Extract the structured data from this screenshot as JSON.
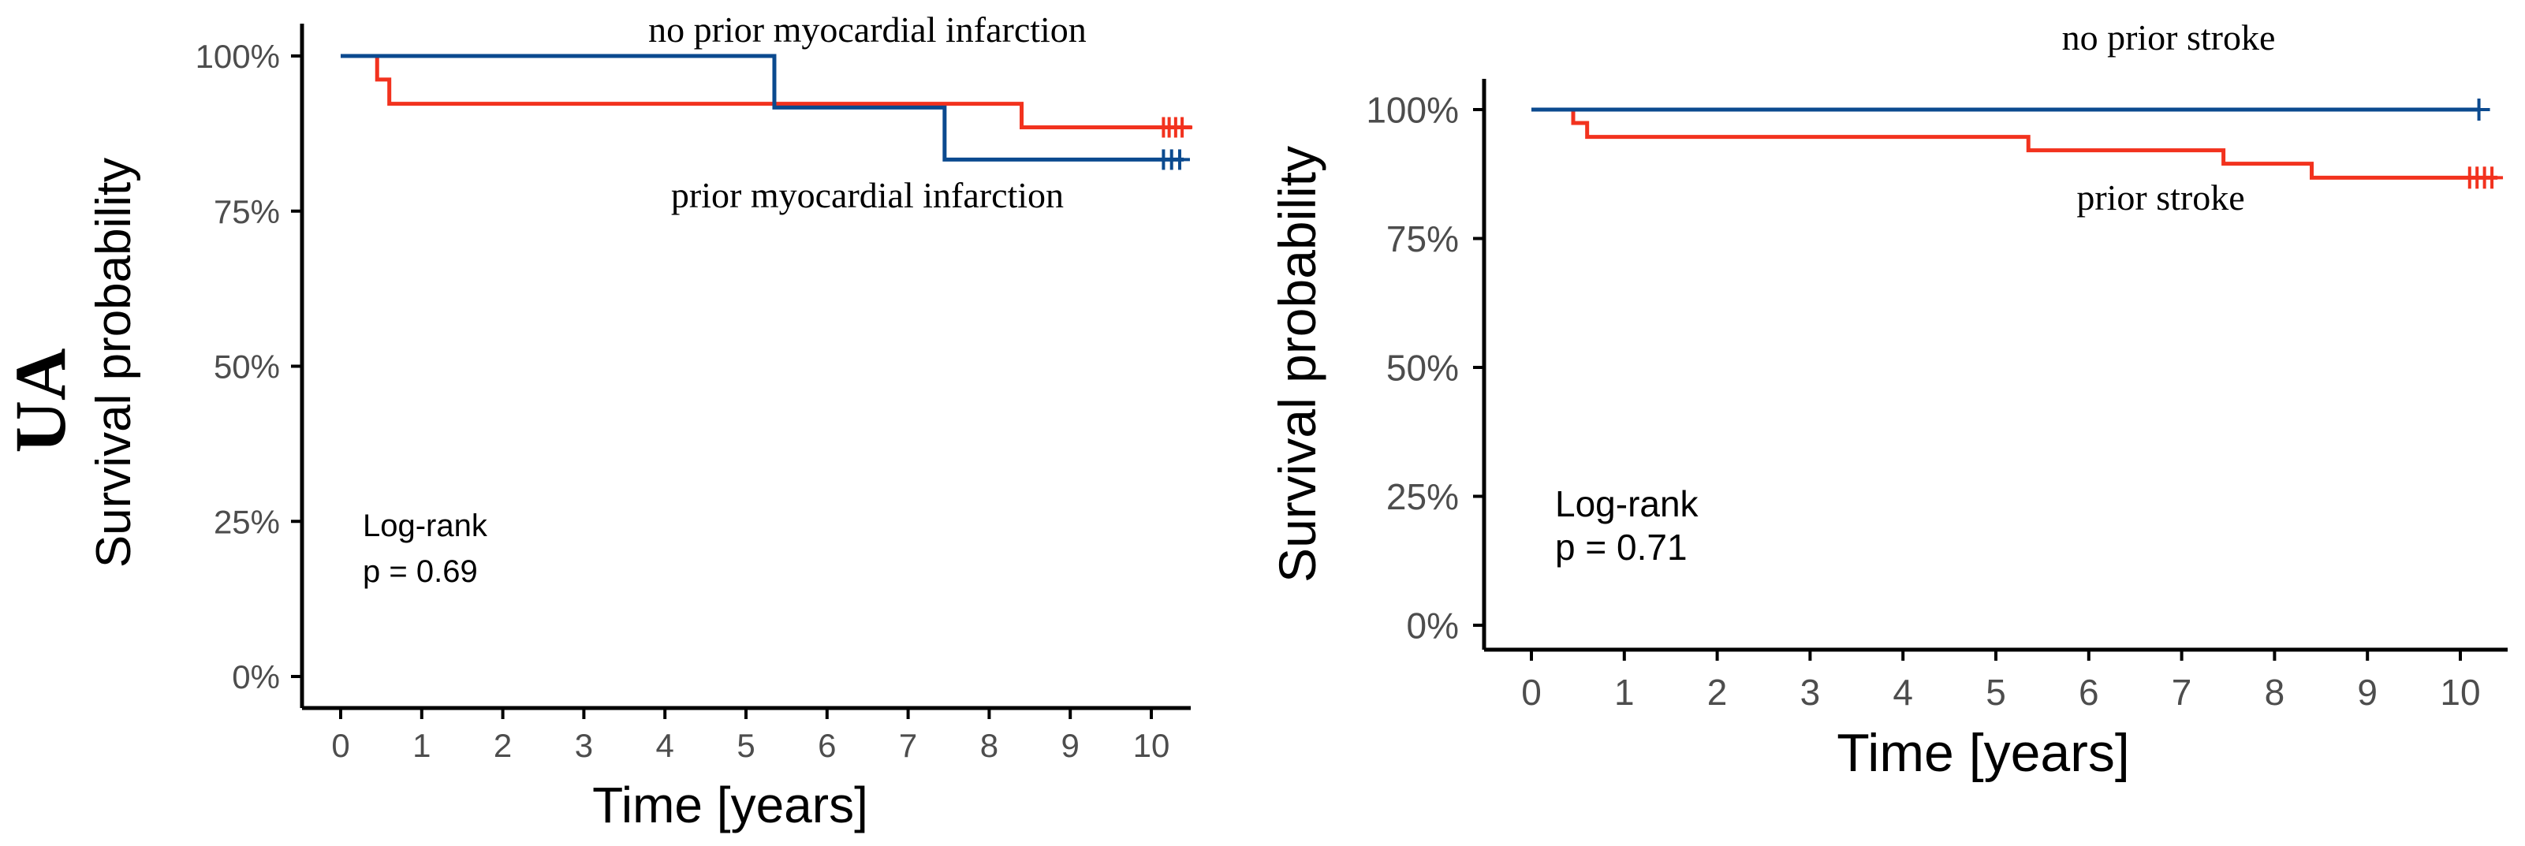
{
  "row_label": "UA",
  "colors": {
    "blue": "#0b4a8f",
    "red": "#f2321e",
    "axis": "#000000",
    "tick_text": "#4d4d4d"
  },
  "chart_data": [
    {
      "type": "line",
      "subtype": "kaplan-meier",
      "xlabel": "Time [years]",
      "ylabel": "Survival probability",
      "xlim": [
        0,
        10.5
      ],
      "ylim": [
        0,
        100
      ],
      "xticks": [
        0,
        1,
        2,
        3,
        4,
        5,
        6,
        7,
        8,
        9,
        10
      ],
      "xtick_labels": [
        "0",
        "1",
        "2",
        "3",
        "4",
        "5",
        "6",
        "7",
        "8",
        "9",
        "10"
      ],
      "yticks": [
        0,
        25,
        50,
        75,
        100
      ],
      "ytick_labels": [
        "0%",
        "25%",
        "50%",
        "75%",
        "100%"
      ],
      "annotation": {
        "line1": "Log-rank",
        "line2": "p = 0.69"
      },
      "series": [
        {
          "name": "no prior myocardial infarction",
          "color": "#0b4a8f",
          "x": [
            0,
            5.35,
            7.45,
            10.4
          ],
          "y": [
            100,
            91.7,
            83.3,
            83.3
          ],
          "censor_x": [
            10.15,
            10.25,
            10.35
          ],
          "censor_y": 83.3
        },
        {
          "name": "prior myocardial infarction",
          "color": "#f2321e",
          "x": [
            0,
            0.45,
            0.6,
            8.4,
            10.5
          ],
          "y": [
            100,
            96.2,
            92.3,
            88.5,
            88.5
          ],
          "censor_x": [
            10.15,
            10.22,
            10.3,
            10.38
          ],
          "censor_y": 88.5
        }
      ],
      "labels": [
        {
          "text": "no prior myocardial infarction",
          "series": 0
        },
        {
          "text": "prior myocardial infarction",
          "series": 1
        }
      ]
    },
    {
      "type": "line",
      "subtype": "kaplan-meier",
      "xlabel": "Time [years]",
      "ylabel": "Survival probability",
      "xlim": [
        0,
        10.5
      ],
      "ylim": [
        0,
        100
      ],
      "xticks": [
        0,
        1,
        2,
        3,
        4,
        5,
        6,
        7,
        8,
        9,
        10
      ],
      "xtick_labels": [
        "0",
        "1",
        "2",
        "3",
        "4",
        "5",
        "6",
        "7",
        "8",
        "9",
        "10"
      ],
      "yticks": [
        0,
        25,
        50,
        75,
        100
      ],
      "ytick_labels": [
        "0%",
        "25%",
        "50%",
        "75%",
        "100%"
      ],
      "annotation": {
        "line1": "Log-rank",
        "line2": "p = 0.71"
      },
      "series": [
        {
          "name": "no prior stroke",
          "color": "#0b4a8f",
          "x": [
            0,
            10.2
          ],
          "y": [
            100,
            100
          ],
          "censor_x": [
            10.2
          ],
          "censor_y": 100
        },
        {
          "name": "prior stroke",
          "color": "#f2321e",
          "x": [
            0,
            0.45,
            0.6,
            5.35,
            7.45,
            8.4,
            10.4
          ],
          "y": [
            100,
            97.4,
            94.7,
            92.1,
            89.5,
            86.8,
            86.8
          ],
          "censor_x": [
            10.1,
            10.18,
            10.26,
            10.34
          ],
          "censor_y": 86.8
        }
      ],
      "labels": [
        {
          "text": "no prior stroke",
          "series": 0
        },
        {
          "text": "prior stroke",
          "series": 1
        }
      ]
    }
  ]
}
